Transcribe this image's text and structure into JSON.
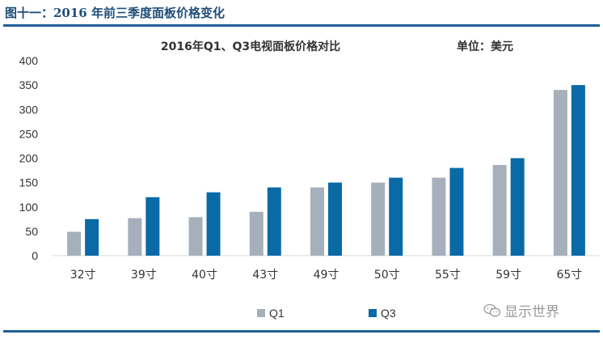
{
  "figure_title": "图十一：2016 年前三季度面板价格变化",
  "watermark": "显示世界",
  "colors": {
    "rule": "#1f5f97",
    "q1": "#a6b0ba",
    "q3": "#0a6aa6",
    "axis_text": "#333333",
    "grid": "#d0d0d0"
  },
  "chart_data": {
    "type": "bar",
    "title": "2016年Q1、Q3电视面板价格对比",
    "unit_label": "单位：美元",
    "categories": [
      "32寸",
      "39寸",
      "40寸",
      "43寸",
      "49寸",
      "50寸",
      "55寸",
      "59寸",
      "65寸"
    ],
    "series": [
      {
        "name": "Q1",
        "color": "#a6b0ba",
        "values": [
          49,
          77,
          79,
          90,
          140,
          150,
          160,
          186,
          340
        ]
      },
      {
        "name": "Q3",
        "color": "#0a6aa6",
        "values": [
          75,
          120,
          130,
          140,
          150,
          160,
          180,
          200,
          350
        ]
      }
    ],
    "ylim": [
      0,
      400
    ],
    "yticks": [
      "0",
      "50",
      "100",
      "150",
      "200",
      "250",
      "300",
      "350",
      "400"
    ],
    "xlabel": "",
    "ylabel": "",
    "grid": false,
    "legend": "bottom"
  }
}
